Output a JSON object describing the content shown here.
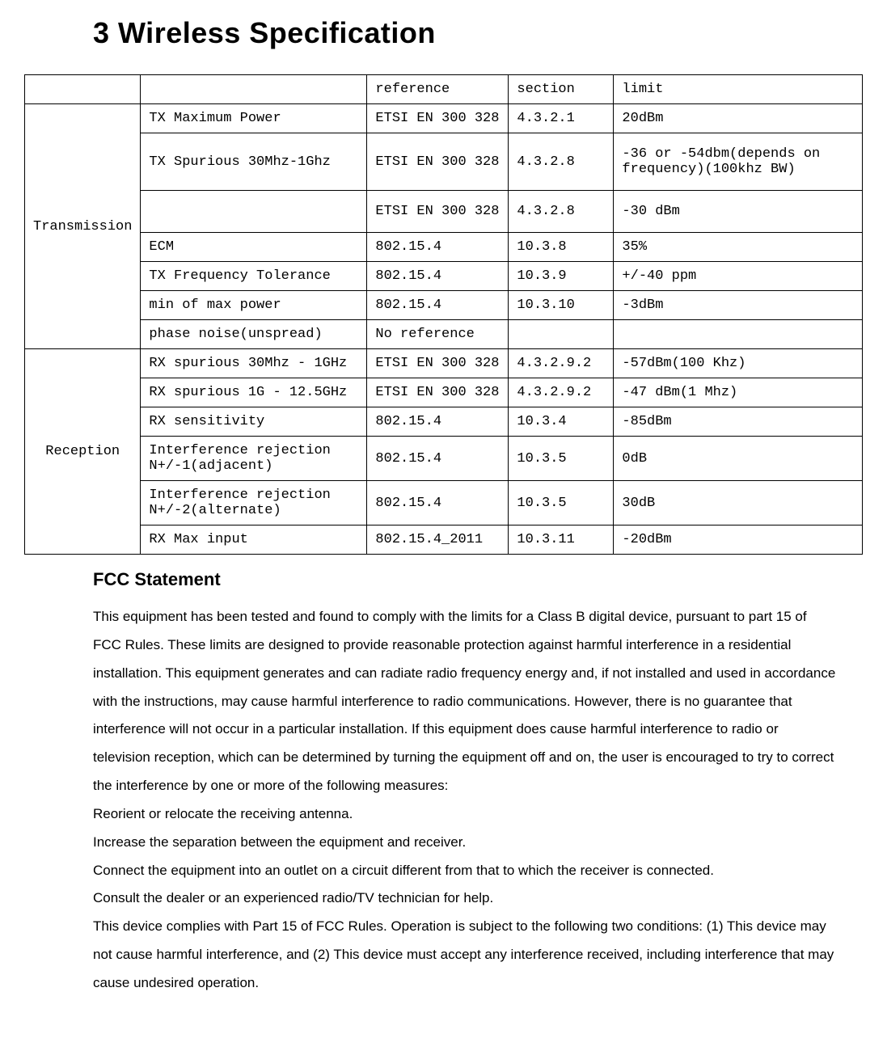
{
  "title": "3 Wireless Specification",
  "table": {
    "col_widths": [
      "130px",
      "280px",
      "175px",
      "130px",
      "auto"
    ],
    "header": [
      "",
      "",
      "reference",
      "section",
      "limit"
    ],
    "groups": [
      {
        "category": "Transmission",
        "rows": [
          {
            "param": "TX Maximum Power",
            "reference": "ETSI EN 300 328",
            "section": "4.3.2.1",
            "limit": "20dBm",
            "tall": false
          },
          {
            "param": "TX Spurious 30Mhz-1Ghz",
            "reference": "ETSI EN 300 328",
            "section": "4.3.2.8",
            "limit": "-36 or -54dbm(depends on frequency)(100khz BW)",
            "tall": true
          },
          {
            "param": "",
            "reference": "ETSI EN 300 328",
            "section": "4.3.2.8",
            "limit": "-30 dBm",
            "tall": true
          },
          {
            "param": "ECM",
            "reference": "802.15.4",
            "section": "10.3.8",
            "limit": "35%",
            "tall": false
          },
          {
            "param": "TX Frequency Tolerance",
            "reference": "802.15.4",
            "section": "10.3.9",
            "limit": "+/-40 ppm",
            "tall": false
          },
          {
            "param": "min of max power",
            "reference": "802.15.4",
            "section": "10.3.10",
            "limit": "-3dBm",
            "tall": false
          },
          {
            "param": "phase noise(unspread)",
            "reference": "No reference",
            "section": "",
            "limit": "",
            "tall": false
          }
        ]
      },
      {
        "category": "Reception",
        "rows": [
          {
            "param": "RX spurious 30Mhz - 1GHz",
            "reference": "ETSI EN 300 328",
            "section": "4.3.2.9.2",
            "limit": "-57dBm(100 Khz)",
            "tall": false
          },
          {
            "param": "RX spurious 1G - 12.5GHz",
            "reference": "ETSI EN 300 328",
            "section": "4.3.2.9.2",
            "limit": "-47 dBm(1 Mhz)",
            "tall": false
          },
          {
            "param": "RX sensitivity",
            "reference": "802.15.4",
            "section": "10.3.4",
            "limit": "-85dBm",
            "tall": false
          },
          {
            "param": "Interference rejection N+/-1(adjacent)",
            "reference": "802.15.4",
            "section": "10.3.5",
            "limit": "0dB",
            "tall": false
          },
          {
            "param": "Interference rejection N+/-2(alternate)",
            "reference": "802.15.4",
            "section": "10.3.5",
            "limit": "30dB",
            "tall": false
          },
          {
            "param": "RX Max input",
            "reference": "802.15.4_2011",
            "section": "10.3.11",
            "limit": "-20dBm",
            "tall": false
          }
        ]
      }
    ]
  },
  "fcc": {
    "heading": "FCC Statement",
    "body": "This equipment has been tested and found to comply with the limits for a Class B digital device, pursuant to part 15 of FCC Rules. These limits are designed to provide reasonable protection against harmful interference in a residential installation. This equipment generates and can radiate radio frequency energy and, if not installed and used in accordance with the instructions, may cause harmful interference to radio communications. However, there is no guarantee that interference will not occur in a particular installation. If this equipment does cause harmful interference to radio or television reception, which can be determined by turning the equipment off and on, the user is encouraged to try to correct the interference by one or more of the following measures:\nReorient or relocate the receiving antenna.\nIncrease the separation between the equipment and receiver.\nConnect the equipment into an outlet on a circuit different from that to which the receiver is connected.\nConsult the dealer or an experienced radio/TV technician for help.\nThis device complies with Part 15 of FCC Rules. Operation is subject to the following two conditions: (1) This device may not cause harmful interference, and (2) This device must accept any interference received, including interference that may cause undesired operation."
  },
  "colors": {
    "text": "#000000",
    "background": "#ffffff",
    "border": "#000000"
  },
  "fonts": {
    "title_family": "Arial",
    "table_family": "Courier New",
    "body_family": "Arial",
    "title_size_pt": 27,
    "table_size_pt": 13,
    "body_size_pt": 13,
    "fcc_heading_size_pt": 17
  }
}
